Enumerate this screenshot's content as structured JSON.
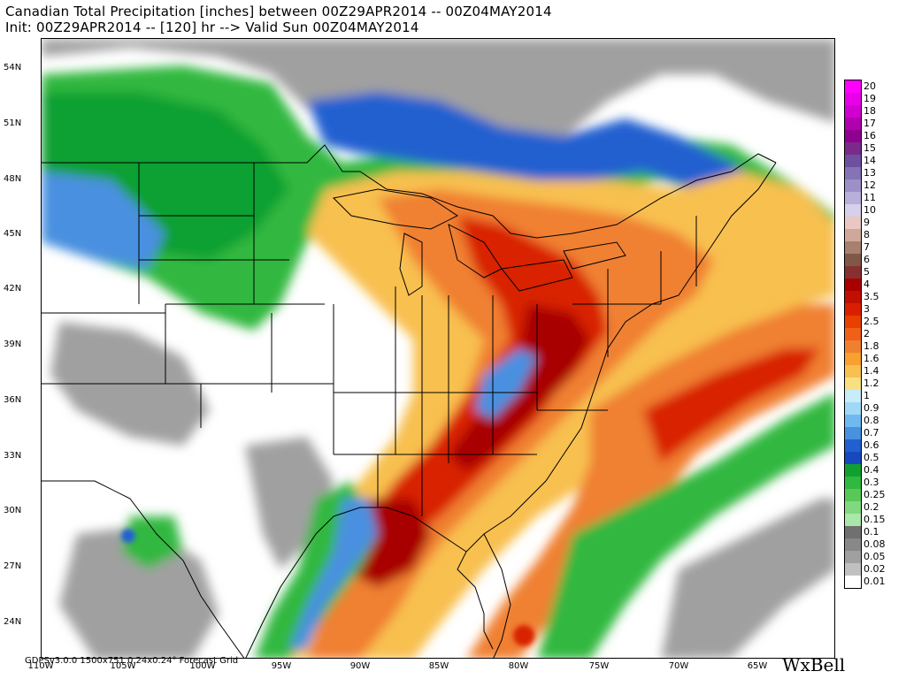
{
  "header": {
    "title_line1": "Canadian Total Precipitation [inches] between 00Z29APR2014 -- 00Z04MAY2014",
    "title_line2": "Init: 00Z29APR2014 -- [120] hr --> Valid Sun 00Z04MAY2014"
  },
  "map": {
    "lat_labels": [
      "54N",
      "51N",
      "48N",
      "45N",
      "42N",
      "39N",
      "36N",
      "33N",
      "30N",
      "27N",
      "24N"
    ],
    "lon_labels": [
      "110W",
      "105W",
      "100W",
      "95W",
      "90W",
      "85W",
      "80W",
      "75W",
      "70W",
      "65W"
    ],
    "colors": {
      "land": "#ffffff",
      "border": "#000000"
    }
  },
  "legend": {
    "levels": [
      "20",
      "19",
      "18",
      "17",
      "16",
      "15",
      "14",
      "13",
      "12",
      "11",
      "10",
      "9",
      "8",
      "7",
      "6",
      "5",
      "4",
      "3.5",
      "3",
      "2.5",
      "2",
      "1.8",
      "1.6",
      "1.4",
      "1.2",
      "1",
      "0.9",
      "0.8",
      "0.7",
      "0.6",
      "0.5",
      "0.4",
      "0.3",
      "0.25",
      "0.2",
      "0.15",
      "0.1",
      "0.08",
      "0.05",
      "0.02",
      "0.01"
    ],
    "colors": [
      "#ff00ff",
      "#e800e8",
      "#d000d0",
      "#b000b0",
      "#900090",
      "#7a2b8a",
      "#6f4fa0",
      "#8473b5",
      "#9d90c8",
      "#b8b0da",
      "#d6d0ea",
      "#e8c8c0",
      "#d0a89a",
      "#a88070",
      "#805848",
      "#883030",
      "#a80000",
      "#c01000",
      "#d82000",
      "#e84000",
      "#f06018",
      "#f08030",
      "#f8a030",
      "#f8c050",
      "#f8e080",
      "#c8ecf8",
      "#a0d8f8",
      "#70b8f0",
      "#4890e0",
      "#2060d0",
      "#1848c0",
      "#10a030",
      "#30b840",
      "#58c858",
      "#80d880",
      "#a8e8a8",
      "#707070",
      "#888888",
      "#a0a0a0",
      "#c0c0c0",
      "#ffffff"
    ]
  },
  "footer": {
    "info": "GDPSv3.0.0 1500x751 0.24x0.24° Forecast Grid",
    "brand": "WxBell"
  }
}
